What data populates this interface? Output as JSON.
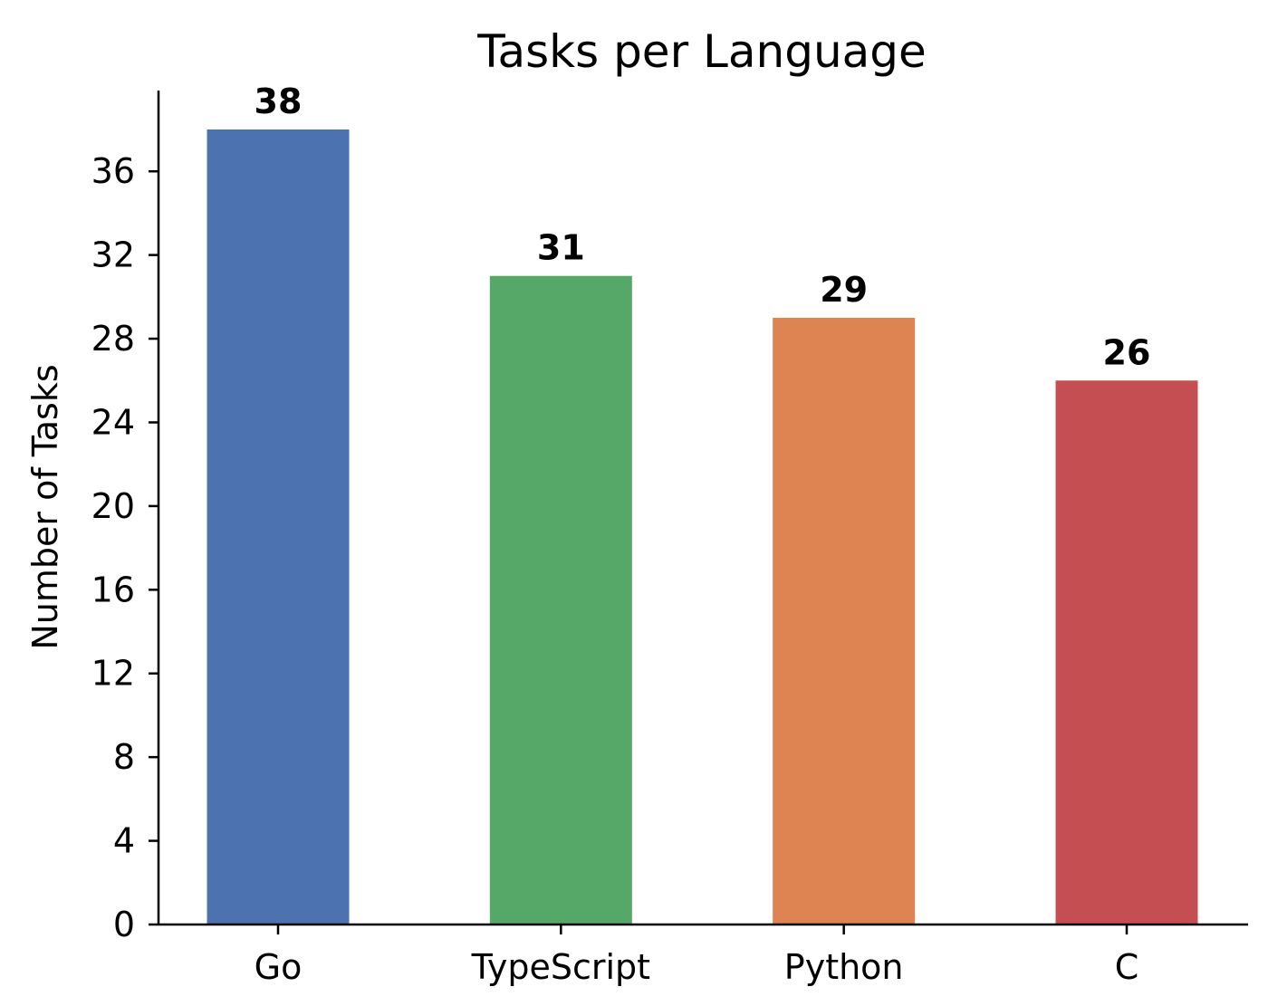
{
  "chart_data": {
    "type": "bar",
    "title": "Tasks per Language",
    "xlabel": "",
    "ylabel": "Number of Tasks",
    "categories": [
      "Go",
      "TypeScript",
      "Python",
      "C"
    ],
    "values": [
      38,
      31,
      29,
      26
    ],
    "colors": [
      "#4c72b0",
      "#55a868",
      "#dd8452",
      "#c44e52"
    ],
    "ylim": [
      0,
      40
    ],
    "yticks": [
      0,
      4,
      8,
      12,
      16,
      20,
      24,
      28,
      32,
      36
    ],
    "grid": false,
    "data_labels": true
  }
}
